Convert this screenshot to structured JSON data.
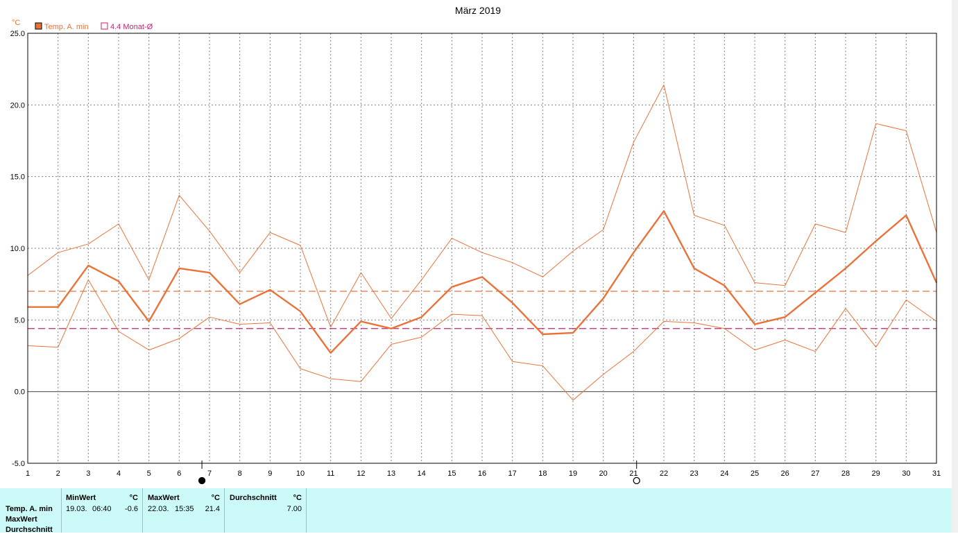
{
  "chart_data": {
    "type": "line",
    "title": "März 2019",
    "ylabel": "°C",
    "xlabel": "",
    "x": [
      1,
      2,
      3,
      4,
      5,
      6,
      7,
      8,
      9,
      10,
      11,
      12,
      13,
      14,
      15,
      16,
      17,
      18,
      19,
      20,
      21,
      22,
      23,
      24,
      25,
      26,
      27,
      28,
      29,
      30,
      31
    ],
    "ylim": [
      -5,
      25
    ],
    "yticks": [
      "-5.0",
      "0.0",
      "5.0",
      "10.0",
      "15.0",
      "20.0",
      "25.0"
    ],
    "grid": true,
    "legend_position": "top-left",
    "series": [
      {
        "name": "Temp. A. min",
        "role": "mean",
        "values": [
          5.9,
          5.9,
          8.8,
          7.7,
          4.9,
          8.6,
          8.3,
          6.1,
          7.1,
          5.6,
          2.7,
          4.9,
          4.4,
          5.2,
          7.3,
          8.0,
          6.2,
          4.0,
          4.1,
          6.5,
          9.7,
          12.6,
          8.6,
          7.4,
          4.7,
          5.2,
          6.9,
          8.6,
          10.5,
          12.3,
          7.6
        ]
      },
      {
        "name": "",
        "role": "max",
        "values": [
          8.1,
          9.7,
          10.3,
          11.7,
          7.8,
          13.7,
          11.2,
          8.3,
          11.1,
          10.2,
          4.5,
          8.3,
          5.1,
          7.8,
          10.7,
          9.7,
          9.0,
          8.0,
          9.8,
          11.3,
          17.4,
          21.4,
          12.3,
          11.6,
          7.6,
          7.4,
          11.7,
          11.1,
          18.7,
          18.2,
          11.1
        ]
      },
      {
        "name": "",
        "role": "min",
        "values": [
          3.2,
          3.1,
          7.8,
          4.2,
          2.9,
          3.7,
          5.2,
          4.7,
          4.8,
          1.6,
          0.9,
          0.7,
          3.3,
          3.8,
          5.4,
          5.3,
          2.1,
          1.8,
          -0.6,
          1.2,
          2.8,
          4.9,
          4.8,
          4.4,
          2.9,
          3.6,
          2.8,
          5.8,
          3.1,
          6.4,
          4.9
        ]
      }
    ],
    "reference_lines": [
      {
        "name": "",
        "value": 7.0,
        "color": "#e8733a"
      },
      {
        "name": "4.4 Monat-Ø",
        "value": 4.4,
        "color": "#c8206e"
      }
    ],
    "markers": [
      {
        "x": 6.75,
        "symbol": "filled-circle"
      },
      {
        "x": 21.1,
        "symbol": "open-circle"
      }
    ]
  },
  "legend": {
    "series_label": "Temp. A. min",
    "ref_label": "4.4 Monat-Ø",
    "series_color": "#e8733a",
    "ref_color": "#c8206e"
  },
  "colors": {
    "line": "#e8733a",
    "avg": "#c8206e",
    "grid": "#7f7f7f",
    "panel": "#ccfaf8"
  },
  "stats": {
    "row_labels": [
      "Temp. A. min",
      "MaxWert",
      "Durchschnitt"
    ],
    "min": {
      "header": "MinWert",
      "unit": "°C",
      "date": "19.03.",
      "time": "06:40",
      "value": "-0.6"
    },
    "max": {
      "header": "MaxWert",
      "unit": "°C",
      "date": "22.03.",
      "time": "15:35",
      "value": "21.4"
    },
    "avg": {
      "header": "Durchschnitt",
      "unit": "°C",
      "value": "7.00"
    }
  }
}
